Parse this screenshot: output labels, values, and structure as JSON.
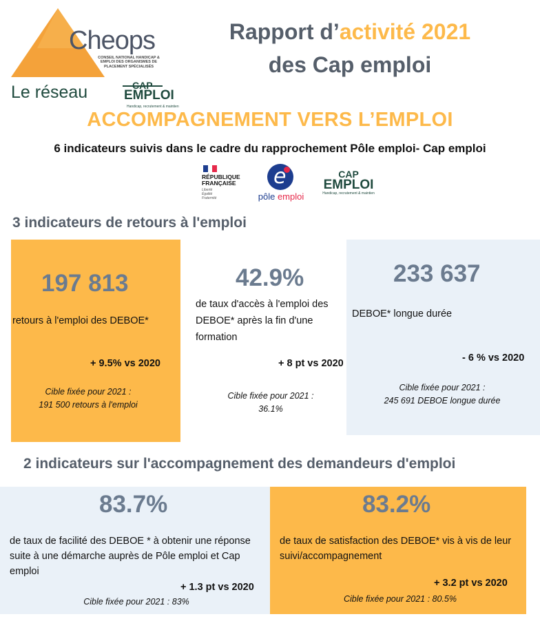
{
  "colors": {
    "accent": "#fdb94a",
    "card_orange": "#fdb94a",
    "card_blue": "#eaf1f8",
    "number_gray": "#6b7b8f",
    "heading_gray": "#555e6a",
    "cap_green": "#1f4a3e"
  },
  "logo": {
    "cheops": "Cheops",
    "cheops_sub": "Conseil national handicap & emploi des organismes de placement spécialisés",
    "reseau": "Le réseau",
    "cap": "CAP",
    "emploi": "EMPLOI",
    "tagline": "Handicap, recrutement & maintien"
  },
  "title": {
    "line1_prefix": "Rapport d’",
    "line1_accent": "activité 2021",
    "line2": "des Cap emploi"
  },
  "section_heading": "ACCOMPAGNEMENT VERS L’EMPLOI",
  "subtitle": "6 indicateurs suivis dans le cadre du rapprochement Pôle emploi- Cap emploi",
  "partners": {
    "rf_line1": "RÉPUBLIQUE",
    "rf_line2": "FRANÇAISE",
    "rf_motto": [
      "Liberté",
      "Égalité",
      "Fraternité"
    ],
    "pe_icon": "pole-emploi-e-icon",
    "pe_glyph": "e",
    "pe_text1": "pôle ",
    "pe_text2": "emploi",
    "ce_line1": "CAP",
    "ce_line2": "EMPLOI",
    "ce_line3": "Handicap, recrutement & maintien"
  },
  "heading_return": "3 indicateurs de retours à l'emploi",
  "heading_support": "2 indicateurs sur l'accompagnement des demandeurs d'emploi",
  "cards": [
    {
      "value": "197 813",
      "desc": "retours à l'emploi des DEBOE*",
      "delta": "+ 9.5% vs 2020",
      "target_line1": "Cible fixée pour 2021 :",
      "target_line2": "191 500 retours à l'emploi"
    },
    {
      "value": "42.9%",
      "desc": "de taux d'accès à l'emploi des  DEBOE* après la fin d'une formation",
      "delta": "+ 8 pt vs 2020",
      "target_line1": "Cible fixée pour 2021 :",
      "target_line2": "36.1%"
    },
    {
      "value": "233 637",
      "desc": "DEBOE* longue durée",
      "delta": "- 6 % vs 2020",
      "target_line1": "Cible fixée pour 2021 :",
      "target_line2": "245 691 DEBOE longue durée"
    },
    {
      "value": "83.7%",
      "desc": "de taux de facilité des DEBOE * à obtenir une réponse suite à une démarche auprès de Pôle emploi et Cap emploi",
      "delta": "+ 1.3 pt vs 2020",
      "target_line1": "Cible fixée pour 2021 : 83%"
    },
    {
      "value": "83.2%",
      "desc": "de taux de satisfaction des DEBOE* vis à vis de leur suivi/accompagnement",
      "delta": "+ 3.2 pt vs 2020",
      "target_line1": "Cible fixée pour 2021 : 80.5%"
    }
  ]
}
